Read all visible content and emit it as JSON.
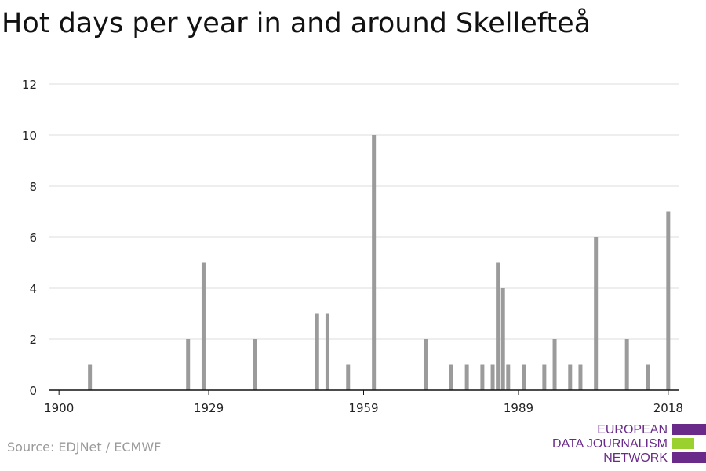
{
  "title": "Hot days per year in and around Skellefteå",
  "source": "Source: EDJNet / ECMWF",
  "logo": {
    "lines": [
      "EUROPEAN",
      "DATA JOURNALISM",
      "NETWORK"
    ],
    "colors": {
      "purple": "#6a2a8a",
      "green": "#9bd12f"
    }
  },
  "chart_data": {
    "type": "bar",
    "title": "Hot days per year in and around Skellefteå",
    "xlabel": "",
    "ylabel": "",
    "x_ticks": [
      1900,
      1929,
      1959,
      1989,
      2018
    ],
    "y_ticks": [
      0,
      2,
      4,
      6,
      8,
      10,
      12
    ],
    "xlim": [
      1898,
      2020
    ],
    "ylim": [
      0,
      12
    ],
    "grid": true,
    "bar_color": "#9b9b9b",
    "x": [
      1904,
      1906,
      1917,
      1925,
      1928,
      1929,
      1938,
      1940,
      1948,
      1950,
      1952,
      1956,
      1957,
      1961,
      1971,
      1974,
      1975,
      1976,
      1979,
      1981,
      1982,
      1983,
      1984,
      1985,
      1986,
      1987,
      1990,
      1994,
      1996,
      1999,
      2001,
      2004,
      2006,
      2007,
      2010,
      2014,
      2018
    ],
    "values": [
      0,
      1,
      0,
      2,
      5,
      0,
      2,
      0,
      0,
      3,
      3,
      1,
      0,
      10,
      2,
      0,
      0,
      1,
      1,
      0,
      1,
      0,
      1,
      5,
      4,
      1,
      1,
      1,
      2,
      1,
      1,
      6,
      0,
      0,
      2,
      1,
      7
    ]
  }
}
